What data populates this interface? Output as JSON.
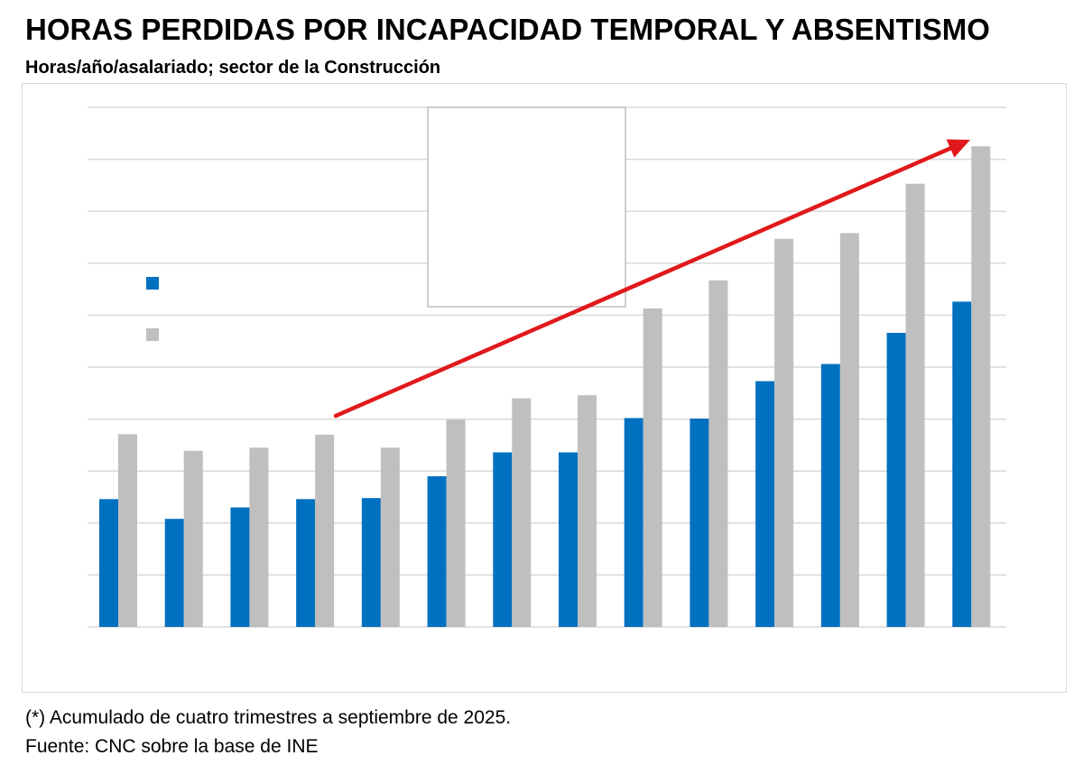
{
  "title": "HORAS PERDIDAS POR INCAPACIDAD TEMPORAL Y ABSENTISMO",
  "subtitle": "Horas/año/asalariado; sector de la Construcción",
  "footnote": "(*) Acumulado de cuatro trimestres a septiembre de 2025.",
  "source": "Fuente: CNC sobre la base de INE",
  "colors": {
    "series1": "#0070c0",
    "series2": "#bfbfbf",
    "gridline": "#d9d9d9",
    "trend_arrow": "#e0191b"
  },
  "chart_data": {
    "type": "bar",
    "title": "HORAS PERDIDAS POR INCAPACIDAD TEMPORAL Y ABSENTISMO",
    "subtitle": "Horas/año/asalariado; sector de la Construcción",
    "xlabel": "",
    "ylabel": "",
    "ylim": [
      0,
      100
    ],
    "grid": true,
    "categories": [
      "",
      "",
      "",
      "",
      "",
      "",
      "",
      "",
      "",
      "",
      "",
      "",
      "",
      ""
    ],
    "series": [
      {
        "name": "",
        "color": "#0070c0",
        "values": [
          24.6,
          20.8,
          23.0,
          24.6,
          24.8,
          29.0,
          33.6,
          33.6,
          40.2,
          40.1,
          47.3,
          50.6,
          56.6,
          62.6
        ]
      },
      {
        "name": "",
        "color": "#bfbfbf",
        "values": [
          37.1,
          33.9,
          34.5,
          37.0,
          34.5,
          39.9,
          44.0,
          44.6,
          61.3,
          66.7,
          74.7,
          75.8,
          85.3,
          92.5
        ]
      }
    ],
    "legend": "left",
    "annotations": [
      "upward trend arrow from 4th to 14th group"
    ]
  }
}
